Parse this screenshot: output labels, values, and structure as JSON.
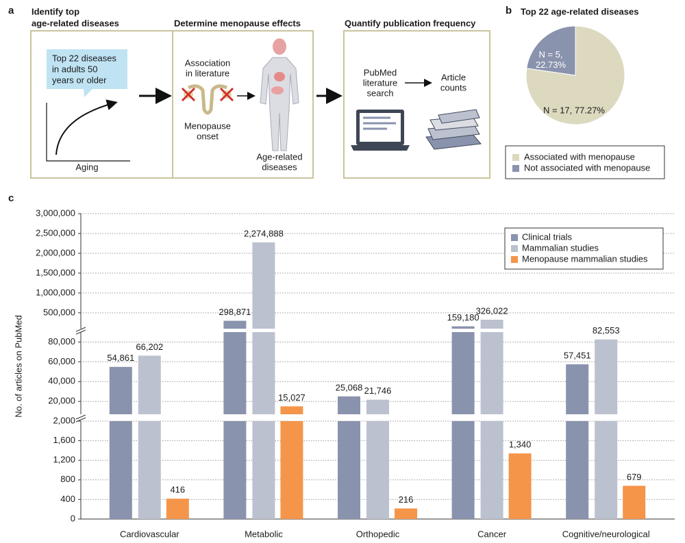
{
  "panel_a": {
    "label": "a",
    "box1": {
      "title": [
        "Identify top",
        "age-related diseases"
      ],
      "bubble": [
        "Top 22 diseases",
        "in adults 50",
        "years or older"
      ],
      "axis_label": "Aging"
    },
    "box2": {
      "title": "Determine menopause effects",
      "association": [
        "Association",
        "in literature"
      ],
      "onset": [
        "Menopause",
        "onset"
      ],
      "diseases": [
        "Age-related",
        "diseases"
      ]
    },
    "box3": {
      "title": "Quantify publication frequency",
      "search": [
        "PubMed",
        "literature",
        "search"
      ],
      "counts": [
        "Article",
        "counts"
      ]
    }
  },
  "chart_data": [
    {
      "type": "pie",
      "panel_label": "b",
      "title": "Top 22 age-related diseases",
      "categories": [
        "Associated with menopause",
        "Not associated with menopause"
      ],
      "values": [
        17,
        5
      ],
      "value_labels": [
        "N = 17, 77.27%",
        "N = 5, 22.73%"
      ],
      "colors": [
        "#dcd9bf",
        "#8a93ad"
      ]
    },
    {
      "type": "bar",
      "panel_label": "c",
      "y_label": "No. of articles on PubMed",
      "categories": [
        "Cardiovascular",
        "Metabolic",
        "Orthopedic",
        "Cancer",
        "Cognitive/neurological"
      ],
      "series": [
        {
          "name": "Clinical trials",
          "color": "#8a93ad",
          "values": [
            54861,
            298871,
            25068,
            159180,
            57451
          ],
          "value_labels": [
            "54,861",
            "298,871",
            "25,068",
            "159,180",
            "57,451"
          ]
        },
        {
          "name": "Mammalian studies",
          "color": "#bcc1d0",
          "values": [
            66202,
            2274888,
            21746,
            326022,
            82553
          ],
          "value_labels": [
            "66,202",
            "2,274,888",
            "21,746",
            "326,022",
            "82,553"
          ]
        },
        {
          "name": "Menopause mammalian studies",
          "color": "#f5954a",
          "values": [
            416,
            15027,
            216,
            1340,
            679
          ],
          "value_labels": [
            "416",
            "15,027",
            "216",
            "1,340",
            "679"
          ]
        }
      ],
      "y_segments": [
        {
          "ylim": [
            0,
            2000
          ],
          "yticks": [
            0,
            400,
            800,
            {
              "value": 1200,
              "label": "1,200"
            },
            {
              "value": 1600,
              "label": "1,600"
            },
            {
              "value": 2000,
              "label": "2,000"
            }
          ]
        },
        {
          "ylim": [
            7000,
            90000
          ],
          "yticks": [
            {
              "value": 20000,
              "label": "20,000"
            },
            {
              "value": 40000,
              "label": "40,000"
            },
            {
              "value": 60000,
              "label": "60,000"
            },
            {
              "value": 80000,
              "label": "80,000"
            }
          ]
        },
        {
          "ylim": [
            100000,
            3000000
          ],
          "yticks": [
            {
              "value": 500000,
              "label": "500,000"
            },
            {
              "value": 1000000,
              "label": "1,000,000"
            },
            {
              "value": 1500000,
              "label": "1,500,000"
            },
            {
              "value": 2000000,
              "label": "2,000,000"
            },
            {
              "value": 2500000,
              "label": "2,500,000"
            },
            {
              "value": 3000000,
              "label": "3,000,000"
            }
          ]
        }
      ],
      "grid": true,
      "legend": "upper right"
    }
  ]
}
